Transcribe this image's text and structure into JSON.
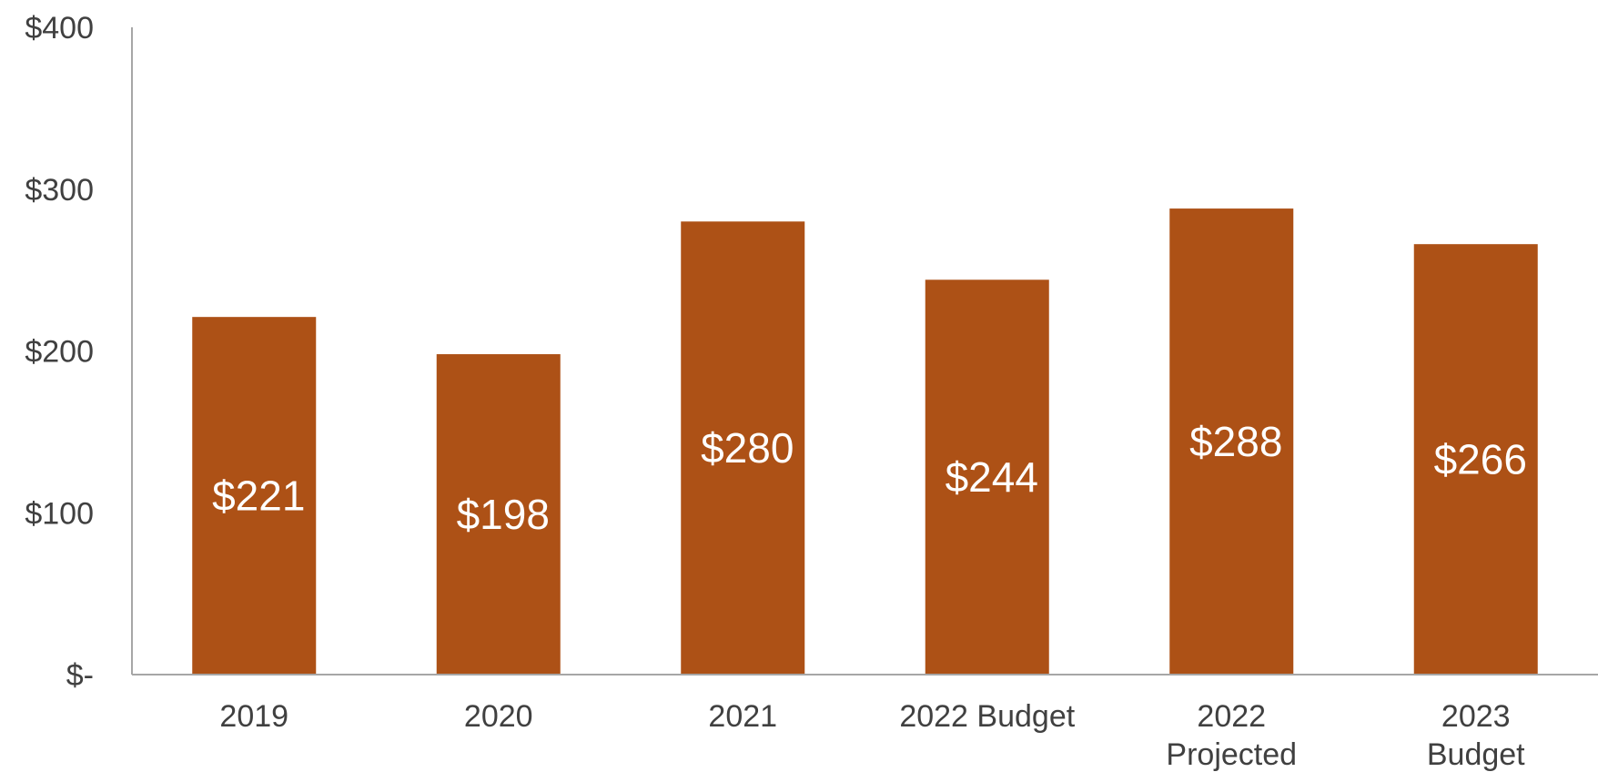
{
  "chart_data": {
    "type": "bar",
    "categories": [
      "2019",
      "2020",
      "2021",
      "2022 Budget",
      "2022 Projected",
      "2023 Budget"
    ],
    "category_lines": [
      [
        "2019"
      ],
      [
        "2020"
      ],
      [
        "2021"
      ],
      [
        "2022 Budget"
      ],
      [
        "2022",
        "Projected"
      ],
      [
        "2023",
        "Budget"
      ]
    ],
    "values": [
      221,
      198,
      280,
      244,
      288,
      266
    ],
    "data_labels": [
      "$221",
      "$198",
      "$280",
      "$244",
      "$288",
      "$266"
    ],
    "yticks": [
      0,
      100,
      200,
      300,
      400
    ],
    "ytick_labels": [
      "$-",
      "$100",
      "$200",
      "$300",
      "$400"
    ],
    "ylim": [
      0,
      400
    ],
    "title": "",
    "xlabel": "",
    "ylabel": "",
    "grid": false,
    "legend": "none",
    "bar_color": "#AD5116",
    "axis_color": "#A6A6A6",
    "text_color": "#404040",
    "label_color": "#FFFFFF"
  }
}
